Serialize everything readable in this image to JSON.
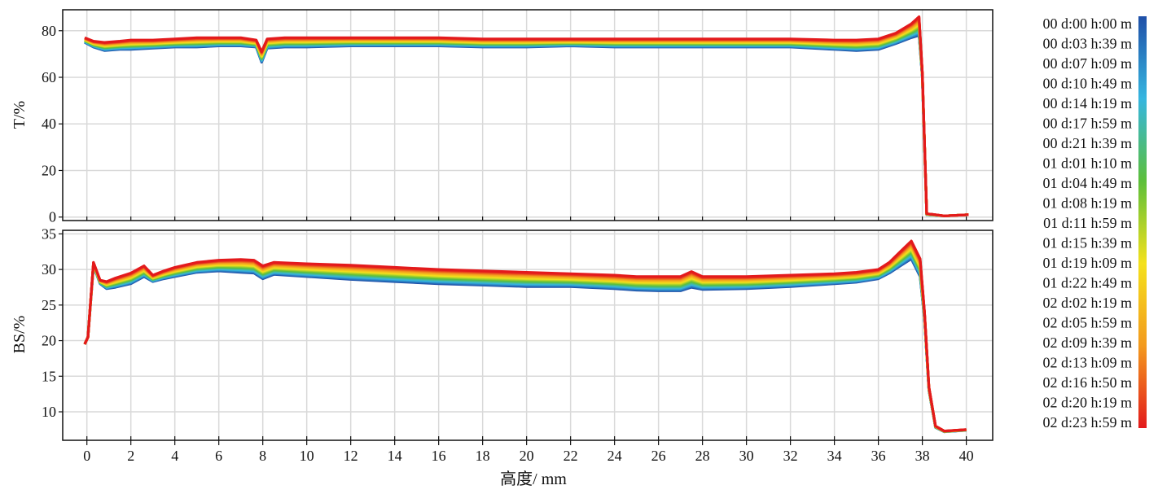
{
  "chart_data": {
    "type": "line",
    "xlabel": "高度/ mm",
    "x_ticks": [
      0,
      2,
      4,
      6,
      8,
      10,
      12,
      14,
      16,
      18,
      20,
      22,
      24,
      26,
      28,
      30,
      32,
      34,
      36,
      38,
      40
    ],
    "xlim": [
      -1.1,
      41.2
    ],
    "legend_position": "right",
    "legend": [
      "00 d:00 h:00 m",
      "00 d:03 h:39 m",
      "00 d:07 h:09 m",
      "00 d:10 h:49 m",
      "00 d:14 h:19 m",
      "00 d:17 h:59 m",
      "00 d:21 h:39 m",
      "01 d:01 h:10 m",
      "01 d:04 h:49 m",
      "01 d:08 h:19 m",
      "01 d:11 h:59 m",
      "01 d:15 h:39 m",
      "01 d:19 h:09 m",
      "01 d:22 h:49 m",
      "02 d:02 h:19 m",
      "02 d:05 h:59 m",
      "02 d:09 h:39 m",
      "02 d:13 h:09 m",
      "02 d:16 h:50 m",
      "02 d:20 h:19 m",
      "02 d:23 h:59 m"
    ],
    "colors": {
      "start": "#1f4fa8",
      "mid1": "#35b6e0",
      "mid2": "#5cbf3a",
      "mid3": "#f4e11c",
      "mid4": "#f39a1e",
      "end": "#e31a1c",
      "grid": "#d9d9d9"
    },
    "panels": [
      {
        "ylabel": "T/%",
        "ylim": [
          -1.5,
          89
        ],
        "y_ticks": [
          0,
          20,
          40,
          60,
          80
        ],
        "grid": true,
        "profile_first": {
          "x": [
            -0.1,
            0.3,
            0.8,
            1.5,
            2,
            3,
            4,
            5,
            6,
            7,
            7.7,
            7.95,
            8.2,
            9,
            10,
            12,
            14,
            16,
            18,
            20,
            22,
            24,
            26,
            28,
            30,
            32,
            34,
            35,
            36,
            36.8,
            37.5,
            37.85,
            38,
            38.2,
            39,
            40.1
          ],
          "y": [
            75,
            73,
            71.5,
            72,
            72,
            72.5,
            73,
            73,
            73.5,
            73.5,
            73,
            66.5,
            72.5,
            73,
            73,
            73.5,
            73.5,
            73.5,
            73,
            73,
            73.5,
            73,
            73,
            73,
            73,
            73,
            72,
            71.5,
            72,
            74.5,
            77,
            78,
            60,
            1,
            0.5,
            1
          ]
        },
        "profile_last": {
          "x": [
            -0.1,
            0.3,
            0.8,
            1.5,
            2,
            3,
            4,
            5,
            6,
            7,
            7.7,
            7.95,
            8.2,
            9,
            10,
            12,
            14,
            16,
            18,
            20,
            22,
            24,
            26,
            28,
            30,
            32,
            34,
            35,
            36,
            36.8,
            37.5,
            37.85,
            38,
            38.2,
            39,
            40.1
          ],
          "y": [
            77,
            75.5,
            75,
            75.5,
            76,
            76,
            76.5,
            77,
            77,
            77,
            76,
            71,
            76.5,
            77,
            77,
            77,
            77,
            77,
            76.5,
            76.5,
            76.5,
            76.5,
            76.5,
            76.5,
            76.5,
            76.5,
            76,
            76,
            76.5,
            79,
            83,
            86,
            62,
            1.5,
            0.5,
            1
          ]
        }
      },
      {
        "ylabel": "BS/%",
        "ylim": [
          6,
          35.5
        ],
        "y_ticks": [
          10,
          15,
          20,
          25,
          30,
          35
        ],
        "grid": true,
        "profile_first": {
          "x": [
            -0.1,
            0.05,
            0.3,
            0.6,
            0.9,
            1.3,
            2,
            2.6,
            3,
            3.5,
            4,
            5,
            6,
            7,
            7.6,
            8,
            8.5,
            10,
            12,
            14,
            16,
            18,
            20,
            22,
            24,
            25,
            26,
            27,
            27.5,
            28,
            30,
            32,
            34,
            35,
            36,
            36.5,
            37,
            37.5,
            37.9,
            38.1,
            38.3,
            38.6,
            39,
            40
          ],
          "y": [
            19.5,
            20.5,
            30.5,
            28,
            27.3,
            27.5,
            28,
            29,
            28.3,
            28.7,
            29,
            29.6,
            29.8,
            29.6,
            29.5,
            28.7,
            29.3,
            29,
            28.6,
            28.3,
            28,
            27.8,
            27.6,
            27.6,
            27.3,
            27.1,
            27,
            27,
            27.5,
            27.2,
            27.3,
            27.6,
            28,
            28.2,
            28.7,
            29.5,
            30.5,
            31.5,
            29,
            23,
            13,
            7.8,
            7.2,
            7.4
          ]
        },
        "profile_last": {
          "x": [
            -0.1,
            0.05,
            0.3,
            0.6,
            0.9,
            1.3,
            2,
            2.6,
            3,
            3.5,
            4,
            5,
            6,
            7,
            7.6,
            8,
            8.5,
            10,
            12,
            14,
            16,
            18,
            20,
            22,
            24,
            25,
            26,
            27,
            27.5,
            28,
            30,
            32,
            34,
            35,
            36,
            36.5,
            37,
            37.5,
            37.9,
            38.1,
            38.3,
            38.6,
            39,
            40
          ],
          "y": [
            19.5,
            20.5,
            31,
            28.5,
            28.3,
            28.8,
            29.5,
            30.5,
            29.2,
            29.8,
            30.3,
            31,
            31.3,
            31.4,
            31.3,
            30.5,
            31,
            30.8,
            30.6,
            30.3,
            30,
            29.8,
            29.6,
            29.4,
            29.2,
            29,
            29,
            29,
            29.7,
            29,
            29,
            29.2,
            29.4,
            29.6,
            30,
            31,
            32.5,
            34,
            31.5,
            24,
            13.5,
            8,
            7.3,
            7.5
          ]
        }
      }
    ]
  }
}
